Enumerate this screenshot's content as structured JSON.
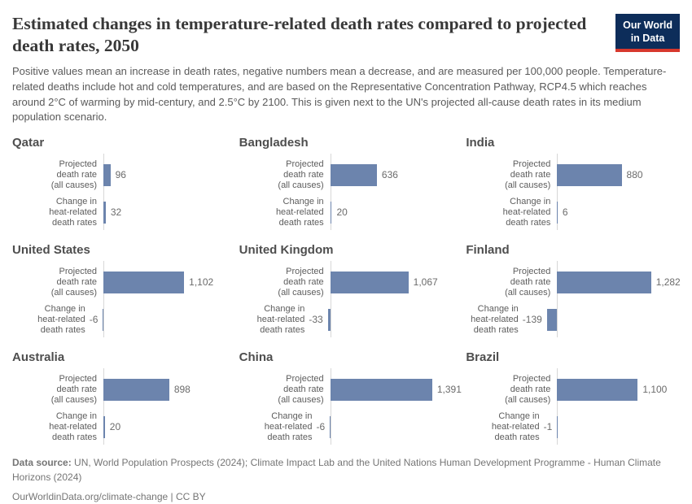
{
  "header": {
    "title": "Estimated changes in temperature-related death rates compared to projected death rates, 2050",
    "subtitle": "Positive values mean an increase in death rates, negative numbers mean a decrease, and are measured per 100,000 people. Temperature-related deaths include hot and cold temperatures, and are based on the Representative Concentration Pathway, RCP4.5 which reaches around 2°C of warming by mid-century, and 2.5°C by 2100. This is given next to the UN's projected all-cause death rates in its medium population scenario.",
    "logo": {
      "line1": "Our World",
      "line2": "in Data",
      "background": "#0d2d5a",
      "accent": "#d7382d"
    }
  },
  "chart_data": {
    "type": "bar",
    "orientation": "horizontal",
    "bar_color": "#6c84ad",
    "axis_color": "#d7d7d7",
    "categories": [
      "Projected death rate (all causes)",
      "Change in heat-related death rates"
    ],
    "categories_lines": [
      [
        "Projected",
        "death rate",
        "(all causes)"
      ],
      [
        "Change in",
        "heat-related",
        "death rates"
      ]
    ],
    "facets": [
      {
        "country": "Qatar",
        "values": [
          96,
          32
        ],
        "labels": [
          "96",
          "32"
        ]
      },
      {
        "country": "Bangladesh",
        "values": [
          636,
          20
        ],
        "labels": [
          "636",
          "20"
        ]
      },
      {
        "country": "India",
        "values": [
          880,
          6
        ],
        "labels": [
          "880",
          "6"
        ]
      },
      {
        "country": "United States",
        "values": [
          1102,
          -6
        ],
        "labels": [
          "1,102",
          "-6"
        ]
      },
      {
        "country": "United Kingdom",
        "values": [
          1067,
          -33
        ],
        "labels": [
          "1,067",
          "-33"
        ]
      },
      {
        "country": "Finland",
        "values": [
          1282,
          -139
        ],
        "labels": [
          "1,282",
          "-139"
        ]
      },
      {
        "country": "Australia",
        "values": [
          898,
          20
        ],
        "labels": [
          "898",
          "20"
        ]
      },
      {
        "country": "China",
        "values": [
          1391,
          -6
        ],
        "labels": [
          "1,391",
          "-6"
        ]
      },
      {
        "country": "Brazil",
        "values": [
          1100,
          -1
        ],
        "labels": [
          "1,100",
          "-1"
        ]
      }
    ],
    "xlim": [
      -160,
      1450
    ],
    "grid": false,
    "legend": "none"
  },
  "footer": {
    "source_label": "Data source:",
    "source_text": "UN, World Population Prospects (2024); Climate Impact Lab and the United Nations Human Development Programme - Human Climate Horizons (2024)",
    "link_text": "OurWorldinData.org/climate-change | CC BY"
  }
}
